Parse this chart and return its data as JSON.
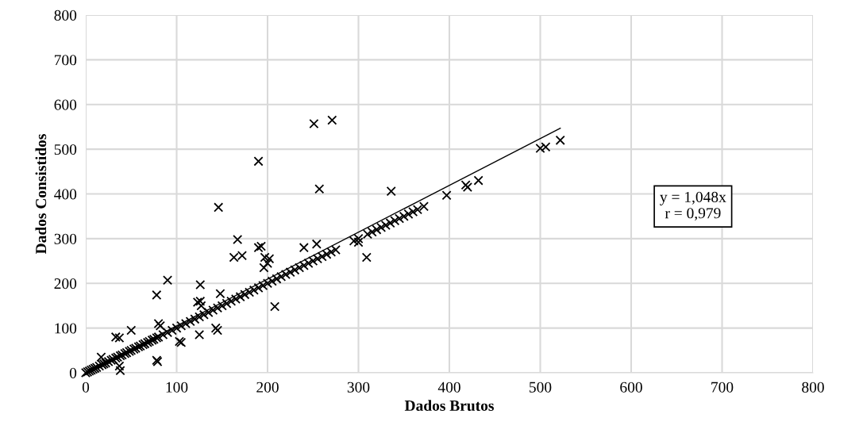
{
  "chart_data": {
    "type": "scatter",
    "xlabel": "Dados Brutos",
    "ylabel": "Dados Consistidos",
    "xlim": [
      0,
      800
    ],
    "ylim": [
      0,
      800
    ],
    "xticks": [
      0,
      100,
      200,
      300,
      400,
      500,
      600,
      700,
      800
    ],
    "yticks": [
      0,
      100,
      200,
      300,
      400,
      500,
      600,
      700,
      800
    ],
    "grid": true,
    "marker": "cross",
    "annotations": [
      "y = 1,048x\nr = 0,979"
    ],
    "series": [
      {
        "color": "#000000",
        "x": [
          0,
          2,
          4,
          6,
          8,
          10,
          12,
          15,
          18,
          20,
          22,
          25,
          28,
          30,
          33,
          35,
          38,
          40,
          43,
          45,
          48,
          50,
          53,
          55,
          58,
          60,
          63,
          65,
          68,
          70,
          73,
          75,
          78,
          80,
          85,
          90,
          95,
          100,
          105,
          110,
          115,
          120,
          125,
          130,
          135,
          140,
          145,
          150,
          155,
          160,
          165,
          170,
          175,
          180,
          185,
          190,
          195,
          200,
          205,
          210,
          215,
          220,
          225,
          230,
          235,
          240,
          245,
          250,
          255,
          260,
          265,
          270,
          275,
          295,
          300,
          310,
          315,
          320,
          325,
          330,
          335,
          340,
          345,
          350,
          355,
          360,
          365,
          372
        ],
        "values": [
          0,
          2,
          4,
          6,
          8,
          10,
          12,
          15,
          18,
          20,
          22,
          25,
          28,
          30,
          33,
          35,
          38,
          40,
          43,
          45,
          48,
          50,
          53,
          55,
          58,
          60,
          63,
          65,
          68,
          70,
          73,
          75,
          78,
          80,
          85,
          90,
          95,
          100,
          105,
          110,
          115,
          120,
          125,
          130,
          135,
          140,
          145,
          150,
          155,
          160,
          165,
          170,
          175,
          180,
          185,
          190,
          195,
          200,
          205,
          210,
          215,
          220,
          225,
          230,
          235,
          240,
          245,
          250,
          255,
          260,
          265,
          270,
          275,
          295,
          300,
          310,
          315,
          320,
          325,
          330,
          335,
          340,
          345,
          350,
          355,
          360,
          365,
          372
        ]
      },
      {
        "color": "#000000",
        "x": [
          251,
          271,
          190,
          257,
          146,
          336,
          167,
          163,
          172,
          190,
          193,
          197,
          200,
          196,
          202,
          240,
          254,
          309,
          208,
          90,
          126,
          78,
          123,
          126,
          127,
          148,
          80,
          82,
          143,
          145,
          125,
          103,
          105,
          78,
          79,
          50,
          33,
          37,
          38,
          37,
          17,
          296,
          300,
          397,
          418,
          420,
          432,
          500,
          506,
          522
        ],
        "values": [
          557,
          565,
          473,
          411,
          370,
          406,
          298,
          258,
          262,
          280,
          283,
          258,
          245,
          235,
          255,
          280,
          288,
          258,
          148,
          207,
          197,
          174,
          158,
          160,
          150,
          177,
          110,
          105,
          100,
          95,
          85,
          70,
          68,
          28,
          25,
          95,
          80,
          78,
          5,
          15,
          35,
          null,
          292,
          397,
          420,
          415,
          430,
          502,
          505,
          520
        ]
      },
      {
        "type": "line",
        "marker": "none",
        "color": "#000000",
        "x": [
          0,
          522
        ],
        "values": [
          0,
          547
        ]
      }
    ]
  }
}
